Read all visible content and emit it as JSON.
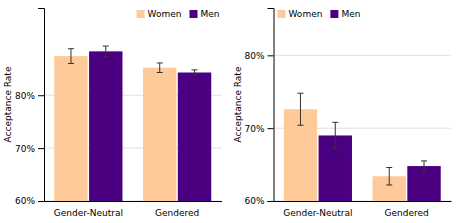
{
  "chart_data": [
    {
      "type": "bar",
      "categories": [
        "Gender-Neutral",
        "Gendered"
      ],
      "series": [
        {
          "name": "Women",
          "color": "#FFCA99",
          "values": [
            0.874,
            0.852
          ],
          "errors": [
            0.014,
            0.009
          ]
        },
        {
          "name": "Men",
          "color": "#4B0082",
          "values": [
            0.883,
            0.843
          ],
          "errors": [
            0.01,
            0.005
          ]
        }
      ],
      "ylim": [
        0.6,
        0.965
      ],
      "yticks": [
        {
          "value": 0.6,
          "label": "60%"
        },
        {
          "value": 0.7,
          "label": "70%"
        },
        {
          "value": 0.8,
          "label": "80%"
        }
      ],
      "ylabel": "Acceptance Rate",
      "grid": true,
      "legend": "upper right"
    },
    {
      "type": "bar",
      "categories": [
        "Gender-Neutral",
        "Gendered"
      ],
      "series": [
        {
          "name": "Women",
          "color": "#FFCA99",
          "values": [
            0.726,
            0.634
          ],
          "errors": [
            0.022,
            0.012
          ]
        },
        {
          "name": "Men",
          "color": "#4B0082",
          "values": [
            0.69,
            0.648
          ],
          "errors": [
            0.018,
            0.007
          ]
        }
      ],
      "ylim": [
        0.6,
        0.865
      ],
      "yticks": [
        {
          "value": 0.6,
          "label": "60%"
        },
        {
          "value": 0.7,
          "label": "70%"
        },
        {
          "value": 0.8,
          "label": "80%"
        }
      ],
      "ylabel": "Acceptance Rate",
      "grid": true,
      "legend": "upper left"
    }
  ]
}
